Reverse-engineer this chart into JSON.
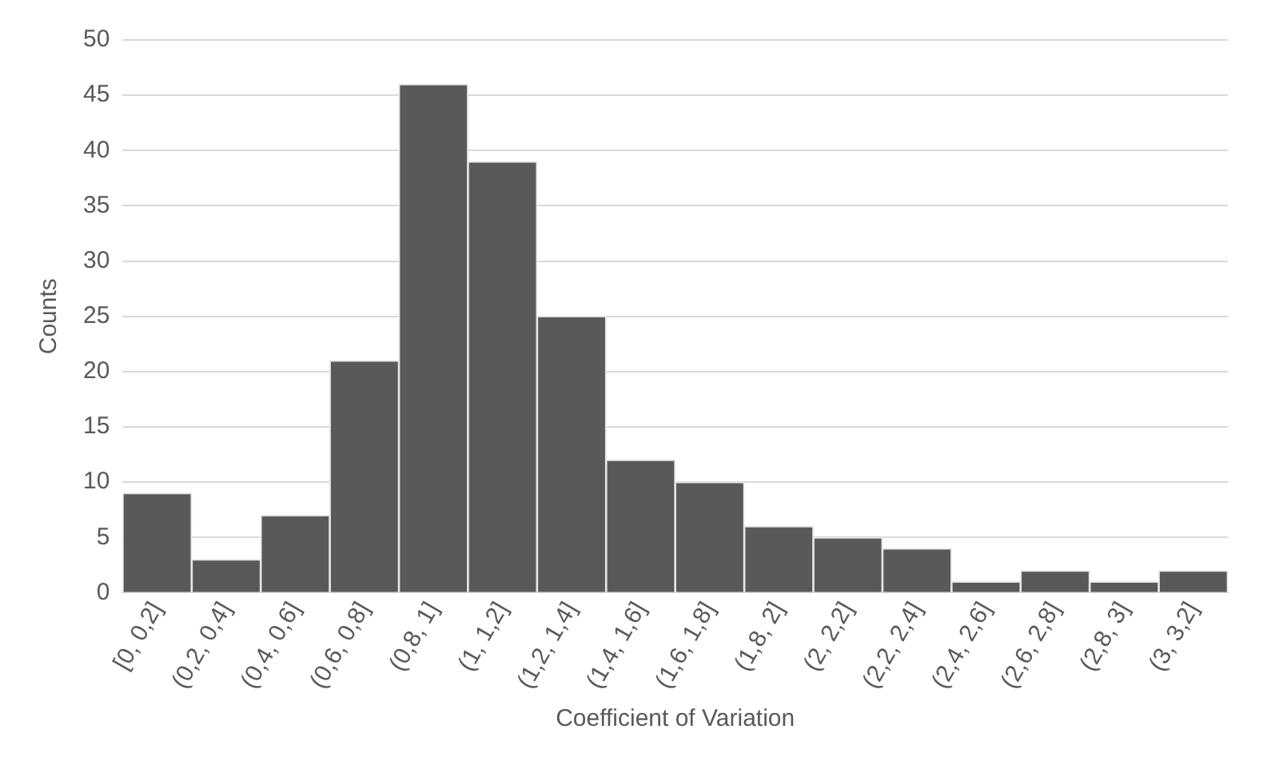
{
  "chart_data": {
    "type": "bar",
    "xlabel": "Coefficient of Variation",
    "ylabel": "Counts",
    "categories": [
      "[0, 0,2]",
      "(0,2, 0,4]",
      "(0,4, 0,6]",
      "(0,6, 0,8]",
      "(0,8, 1]",
      "(1, 1,2]",
      "(1,2, 1,4]",
      "(1,4, 1,6]",
      "(1,6, 1,8]",
      "(1,8, 2]",
      "(2, 2,2]",
      "(2,2, 2,4]",
      "(2,4, 2,6]",
      "(2,6, 2,8]",
      "(2,8, 3]",
      "(3, 3,2]"
    ],
    "values": [
      9,
      3,
      7,
      21,
      46,
      39,
      25,
      12,
      10,
      6,
      5,
      4,
      1,
      2,
      1,
      2
    ],
    "color": "#595959",
    "ylim": [
      0,
      50
    ],
    "yticks": [
      0,
      5,
      10,
      15,
      20,
      25,
      30,
      35,
      40,
      45,
      50
    ],
    "grid": "y",
    "legend": false
  }
}
